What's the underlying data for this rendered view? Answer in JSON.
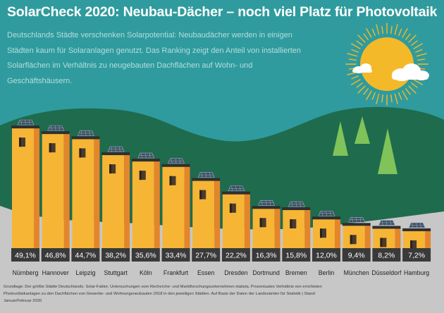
{
  "header": {
    "title": "SolarCheck 2020: Neubau-Dächer – noch viel Platz für Photovoltaik",
    "subtitle": "Deutschlands Städte verschenken Solarpotential: Neubaudächer werden in einigen Städten kaum für Solaranlagen genutzt. Das Ranking zeigt den Anteil von installierten Solarflächen im Verhältnis zu neugebauten Dachflächen auf Wohn- und Geschäftshäusern."
  },
  "footer": {
    "note": "Grundlage: Der größte Städte Deutschlands. Solar-Faktor, Untersuchungen vom Recherche- und Marktforschungsunternehmen statista. Prozentuales Verhältnis von errichteten Photovoltaikanlagen zu den Dachflächen von Gewerbe- und Wohnungsneubauten 2018 in den jeweiligen Städten. Auf Basis der Daten der Landesämter für Statistik | Stand: Januar/Februar 2020"
  },
  "colors": {
    "sky": "#2f9b9e",
    "hill": "#1f6b4d",
    "tree": "#7fc35a",
    "ground": "#c7c7c7",
    "building": "#f6b535",
    "building_side": "#e3862b",
    "label_bg": "#3a3a3a",
    "sun": "#f4b929"
  },
  "chart_data": {
    "type": "bar",
    "categories": [
      "Nürnberg",
      "Hannover",
      "Leipzig",
      "Stuttgart",
      "Köln",
      "Frankfurt",
      "Essen",
      "Dresden",
      "Dortmund",
      "Bremen",
      "Berlin",
      "München",
      "Düsseldorf",
      "Hamburg"
    ],
    "values": [
      49.1,
      46.8,
      44.7,
      38.2,
      35.6,
      33.4,
      27.7,
      22.2,
      16.3,
      15.8,
      12.0,
      9.4,
      8.2,
      7.2
    ],
    "labels": [
      "49,1%",
      "46,8%",
      "44,7%",
      "38,2%",
      "35,6%",
      "33,4%",
      "27,7%",
      "22,2%",
      "16,3%",
      "15,8%",
      "12,0%",
      "9,4%",
      "8,2%",
      "7,2%"
    ],
    "unit": "%",
    "ylim": [
      0,
      50
    ]
  }
}
